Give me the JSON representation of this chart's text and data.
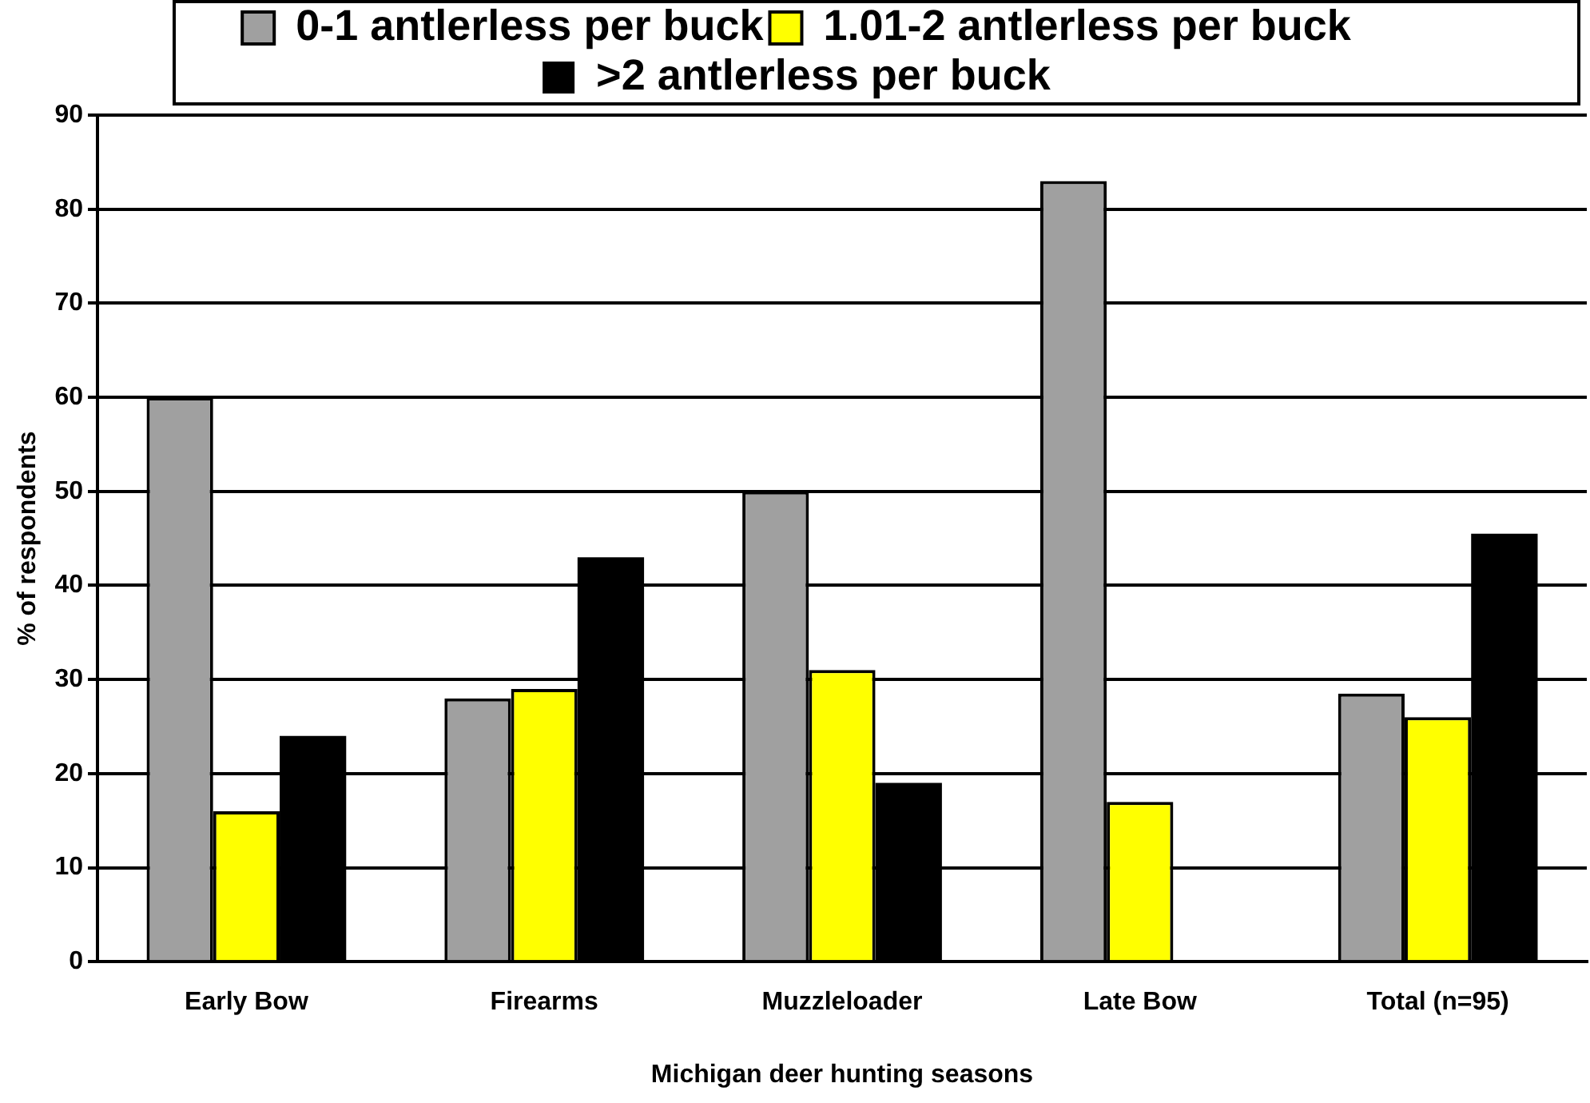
{
  "chart_data": {
    "type": "bar",
    "xlabel": "Michigan deer hunting seasons",
    "ylabel": "% of respondents",
    "categories": [
      "Early Bow",
      "Firearms",
      "Muzzleloader",
      "Late Bow",
      "Total (n=95)"
    ],
    "series": [
      {
        "name": "0-1 antlerless per buck",
        "color": "#a0a0a0",
        "values": [
          60,
          28,
          50,
          83,
          28.5
        ]
      },
      {
        "name": "1.01-2 antlerless per buck",
        "color": "#ffff00",
        "values": [
          16,
          29,
          31,
          17,
          26
        ]
      },
      {
        "name": ">2 antlerless per buck",
        "color": "#000000",
        "values": [
          24,
          43,
          19,
          0,
          45.5
        ]
      }
    ],
    "ylim": [
      0,
      90
    ],
    "yticks": [
      0,
      10,
      20,
      30,
      40,
      50,
      60,
      70,
      80,
      90
    ],
    "grid": "y",
    "legend": "top"
  }
}
